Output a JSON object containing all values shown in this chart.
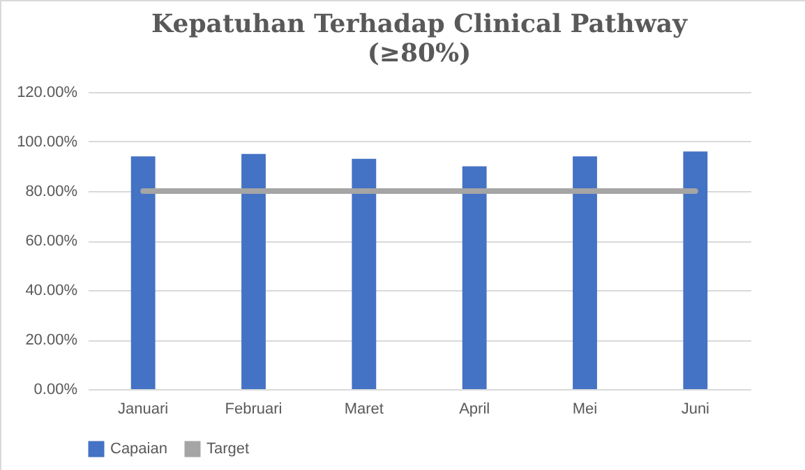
{
  "chart_data": {
    "type": "bar",
    "title": "Kepatuhan Terhadap Clinical Pathway",
    "subtitle": "(≥80%)",
    "categories": [
      "Januari",
      "Februari",
      "Maret",
      "April",
      "Mei",
      "Juni"
    ],
    "series": [
      {
        "name": "Capaian",
        "color": "#4472c4",
        "values": [
          94,
          95,
          93,
          90,
          94,
          96
        ]
      },
      {
        "name": "Target",
        "type": "line",
        "color": "#a5a5a5",
        "values": [
          80,
          80,
          80,
          80,
          80,
          80
        ]
      }
    ],
    "ylim": [
      0,
      120
    ],
    "yticks": [
      {
        "value": 0,
        "label": "0.00%"
      },
      {
        "value": 20,
        "label": "20.00%"
      },
      {
        "value": 40,
        "label": "40.00%"
      },
      {
        "value": 60,
        "label": "60.00%"
      },
      {
        "value": 80,
        "label": "80.00%"
      },
      {
        "value": 100,
        "label": "100.00%"
      },
      {
        "value": 120,
        "label": "120.00%"
      }
    ],
    "grid": "y",
    "legend": "bottom",
    "marker": "none"
  }
}
